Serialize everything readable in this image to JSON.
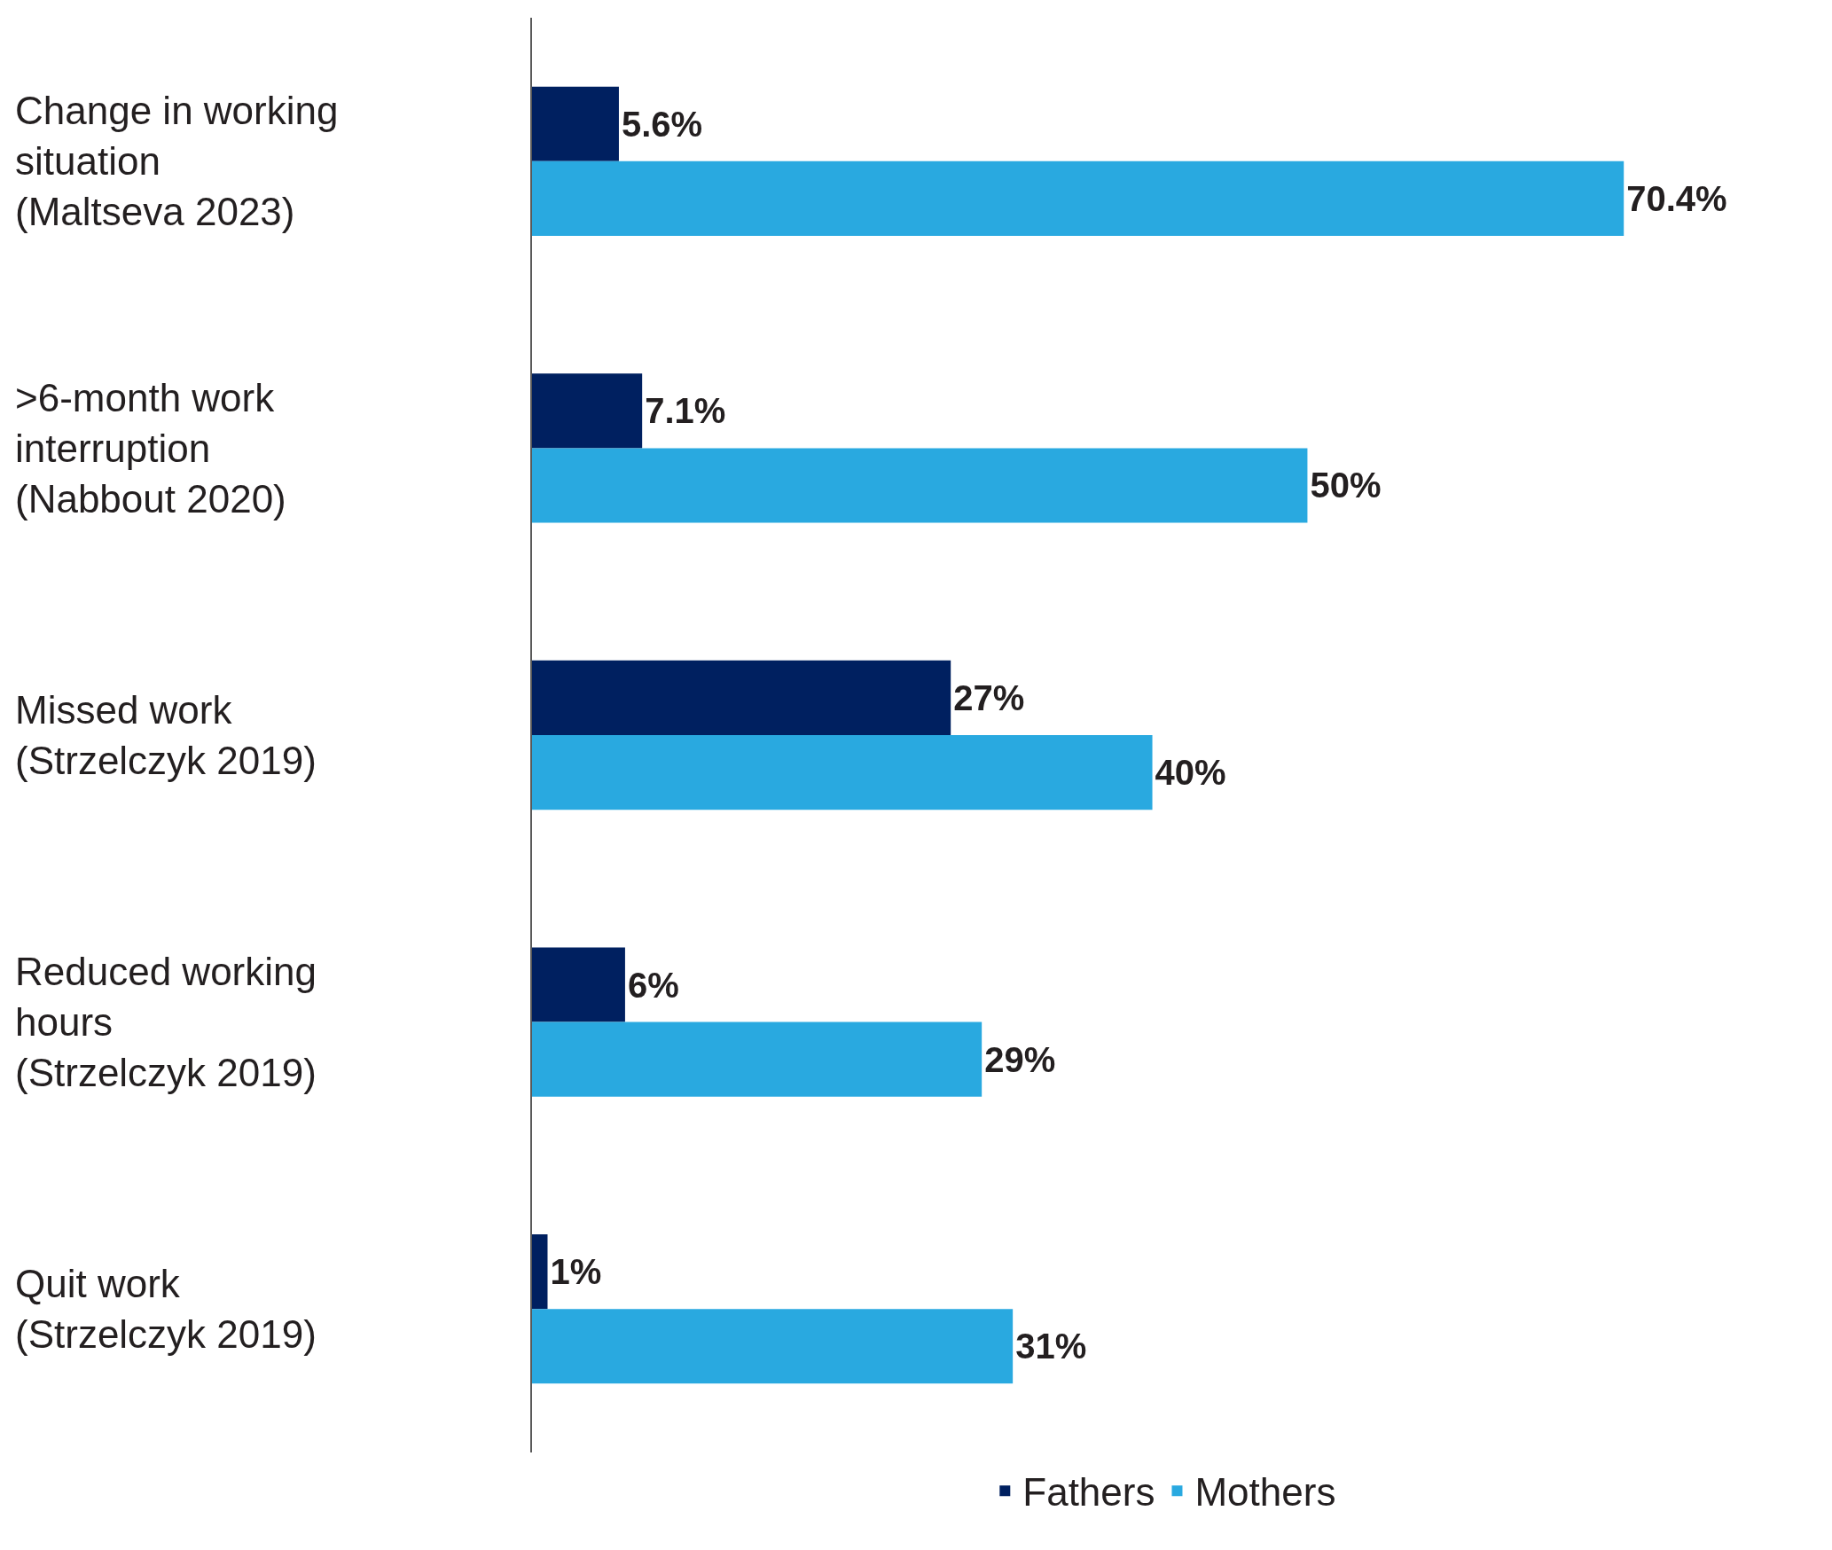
{
  "chart_data": {
    "type": "bar",
    "orientation": "horizontal",
    "categories": [
      "Change in working situation (Maltseva 2023)",
      ">6-month work interruption (Nabbout 2020)",
      "Missed work (Strzelczyk 2019)",
      "Reduced working hours (Strzelczyk 2019)",
      "Quit work (Strzelczyk 2019)"
    ],
    "series": [
      {
        "name": "Fathers",
        "color": "#002060",
        "values": [
          5.6,
          7.1,
          27,
          6,
          1
        ],
        "value_labels": [
          "5.6%",
          "7.1%",
          "27%",
          "6%",
          "1%"
        ]
      },
      {
        "name": "Mothers",
        "color": "#29a9e0",
        "values": [
          70.4,
          50,
          40,
          29,
          31
        ],
        "value_labels": [
          "70.4%",
          "50%",
          "40%",
          "29%",
          "31%"
        ]
      }
    ],
    "legend": "bottom",
    "tick_labels": false
  }
}
